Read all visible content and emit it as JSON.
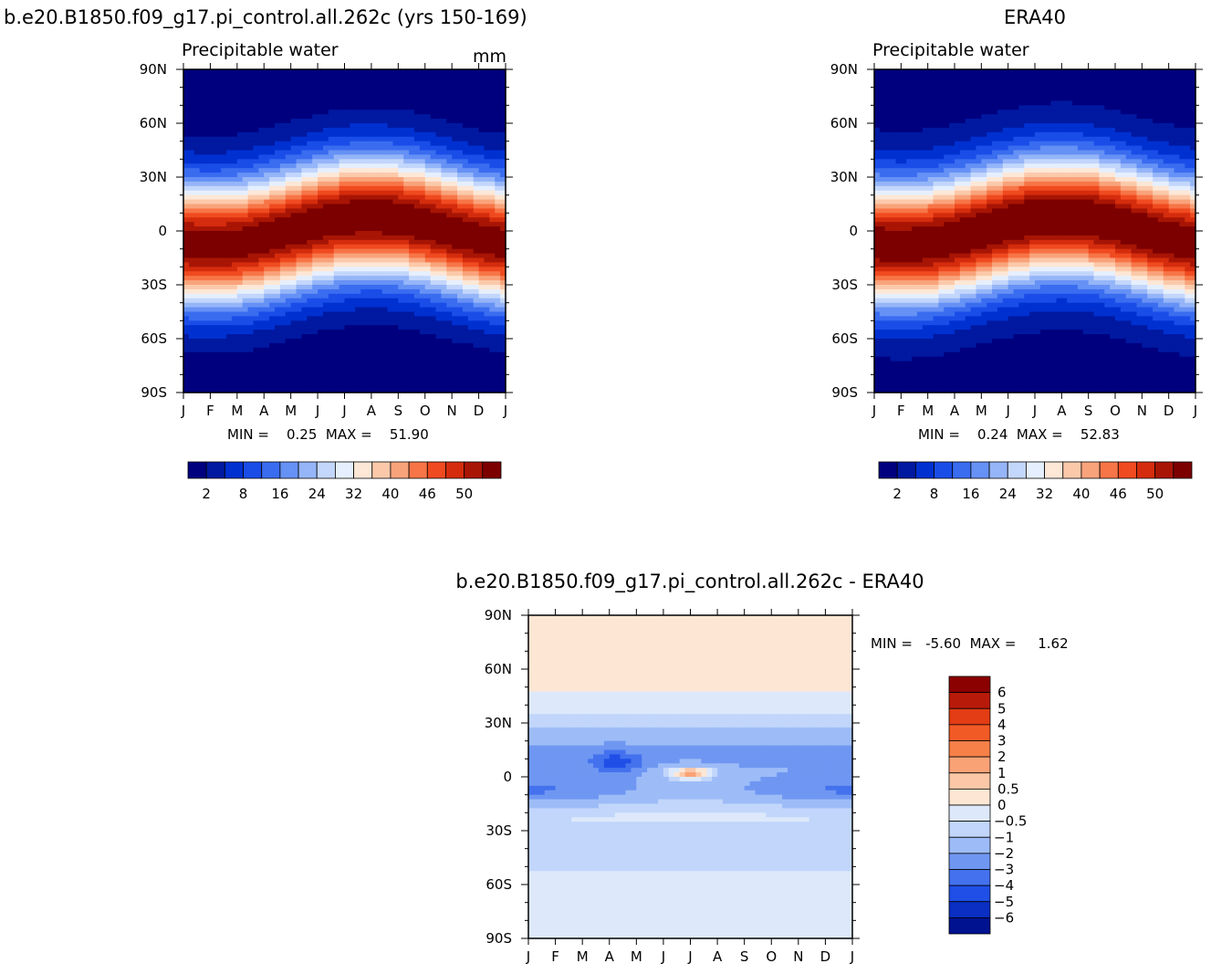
{
  "panel_model": {
    "title": "b.e20.B1850.f09_g17.pi_control.all.262c (yrs 150-169)",
    "subtitle": "Precipitable water",
    "units": "mm",
    "stats": "MIN =    0.25  MAX =    51.90"
  },
  "panel_obs": {
    "title": "ERA40",
    "subtitle": "Precipitable water",
    "stats": "MIN =    0.24  MAX =    52.83"
  },
  "panel_diff": {
    "title": "b.e20.B1850.f09_g17.pi_control.all.262c - ERA40",
    "stats": "MIN =   -5.60  MAX =     1.62"
  },
  "axes": {
    "x_ticks": [
      "J",
      "F",
      "M",
      "A",
      "M",
      "J",
      "J",
      "A",
      "S",
      "O",
      "N",
      "D",
      "J"
    ],
    "y_ticks": [
      "90N",
      "60N",
      "30N",
      "0",
      "30S",
      "60S",
      "90S"
    ]
  },
  "colorbar_abs": {
    "labels": [
      "2",
      "8",
      "16",
      "24",
      "32",
      "40",
      "46",
      "50"
    ],
    "colors": [
      "#00007f",
      "#0019a0",
      "#0030d0",
      "#1a4de8",
      "#3a6cf0",
      "#6691f5",
      "#95b5f8",
      "#c3d6fb",
      "#e6effd",
      "#fde7d6",
      "#fbc9aa",
      "#f9a37b",
      "#f77547",
      "#f04a20",
      "#d42c0d",
      "#a81505",
      "#7c0000"
    ]
  },
  "colorbar_diff": {
    "labels": [
      "6",
      "5",
      "4",
      "3",
      "2",
      "1",
      "0.5",
      "0",
      "-0.5",
      "-1",
      "-2",
      "-3",
      "-4",
      "-5",
      "-6"
    ],
    "colors": [
      "#8b0000",
      "#b81a0a",
      "#e23d14",
      "#f25a25",
      "#f78048",
      "#f9a276",
      "#fbc7a6",
      "#fde6d4",
      "#dde9fb",
      "#c1d6fa",
      "#9dbcf7",
      "#6f97f2",
      "#4472ee",
      "#1f4fe6",
      "#0a2fc2",
      "#001290"
    ]
  },
  "chart_data": [
    {
      "type": "heatmap",
      "title": "b.e20.B1850.f09_g17.pi_control.all.262c (yrs 150-169)",
      "subtitle": "Precipitable water",
      "units": "mm",
      "x_categories": [
        "J",
        "F",
        "M",
        "A",
        "M",
        "J",
        "J",
        "A",
        "S",
        "O",
        "N",
        "D",
        "J"
      ],
      "y_categories": [
        "90N",
        "60N",
        "30N",
        "0",
        "30S",
        "60S",
        "90S"
      ],
      "min": 0.25,
      "max": 51.9
    },
    {
      "type": "heatmap",
      "title": "ERA40",
      "subtitle": "Precipitable water",
      "x_categories": [
        "J",
        "F",
        "M",
        "A",
        "M",
        "J",
        "J",
        "A",
        "S",
        "O",
        "N",
        "D",
        "J"
      ],
      "y_categories": [
        "90N",
        "60N",
        "30N",
        "0",
        "30S",
        "60S",
        "90S"
      ],
      "min": 0.24,
      "max": 52.83
    },
    {
      "type": "heatmap",
      "title": "b.e20.B1850.f09_g17.pi_control.all.262c - ERA40",
      "x_categories": [
        "J",
        "F",
        "M",
        "A",
        "M",
        "J",
        "J",
        "A",
        "S",
        "O",
        "N",
        "D",
        "J"
      ],
      "y_categories": [
        "90N",
        "60N",
        "30N",
        "0",
        "30S",
        "60S",
        "90S"
      ],
      "min": -5.6,
      "max": 1.62
    }
  ]
}
